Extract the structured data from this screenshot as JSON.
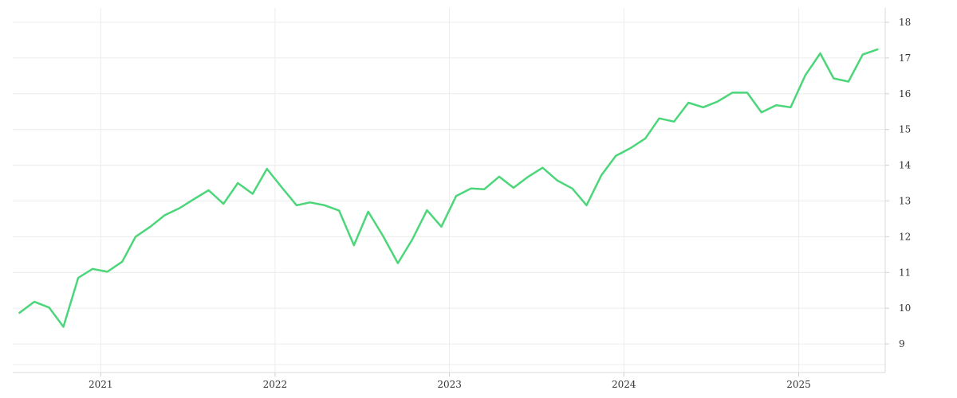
{
  "chart_data": {
    "type": "line",
    "title": "",
    "xlabel": "",
    "ylabel": "",
    "ylim": [
      8.2,
      18.4
    ],
    "xlim": [
      "2020-07-01",
      "2025-07-01"
    ],
    "y_ticks": [
      9,
      10,
      11,
      12,
      13,
      14,
      15,
      16,
      17,
      18
    ],
    "x_ticks": [
      "2021",
      "2022",
      "2023",
      "2024",
      "2025"
    ],
    "y_axis_position": "right",
    "grid": true,
    "line_color": "#4cd67a",
    "series": [
      {
        "x": [
          "2020-07",
          "2020-08",
          "2020-09",
          "2020-10",
          "2020-11",
          "2020-12",
          "2021-01",
          "2021-02",
          "2021-03",
          "2021-04",
          "2021-05",
          "2021-06",
          "2021-07",
          "2021-08",
          "2021-09",
          "2021-10",
          "2021-11",
          "2021-12",
          "2022-01",
          "2022-02",
          "2022-03",
          "2022-04",
          "2022-05",
          "2022-06",
          "2022-07",
          "2022-08",
          "2022-09",
          "2022-10",
          "2022-11",
          "2022-12",
          "2023-01",
          "2023-02",
          "2023-03",
          "2023-04",
          "2023-05",
          "2023-06",
          "2023-07",
          "2023-08",
          "2023-09",
          "2023-10",
          "2023-11",
          "2023-12",
          "2024-01",
          "2024-02",
          "2024-03",
          "2024-04",
          "2024-05",
          "2024-06",
          "2024-07",
          "2024-08",
          "2024-09",
          "2024-10",
          "2024-11",
          "2024-12",
          "2025-01",
          "2025-02",
          "2025-03",
          "2025-04",
          "2025-05",
          "2025-06"
        ],
        "values": [
          9.87,
          10.18,
          10.02,
          9.48,
          10.85,
          11.1,
          11.02,
          11.3,
          12.0,
          12.28,
          12.6,
          12.8,
          13.05,
          13.3,
          12.92,
          13.5,
          13.2,
          13.9,
          13.38,
          12.88,
          12.96,
          12.88,
          12.73,
          11.76,
          12.7,
          12.02,
          11.26,
          11.92,
          12.74,
          12.28,
          13.14,
          13.35,
          13.33,
          13.68,
          13.37,
          13.68,
          13.93,
          13.57,
          13.35,
          12.88,
          13.72,
          14.26,
          14.48,
          14.75,
          15.31,
          15.22,
          15.75,
          15.62,
          15.78,
          16.03,
          16.03,
          15.48,
          15.68,
          15.62,
          16.52,
          17.13,
          16.43,
          16.34,
          17.1,
          17.24
        ]
      }
    ]
  }
}
